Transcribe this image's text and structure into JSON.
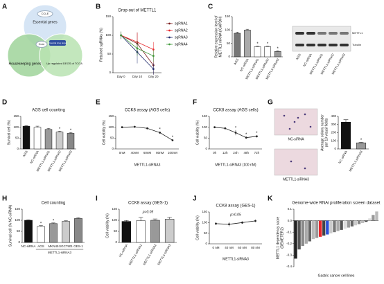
{
  "chart_data": [
    {
      "panel": "A",
      "type": "venn",
      "sets": [
        "Essential genes",
        "Housekeeping genes",
        "Up regulated DEGS of TCGA"
      ],
      "colors": [
        "#cfe0f3",
        "#9fd39a",
        "#b9e3b2"
      ],
      "labels": [
        "CCLE",
        "Core",
        "Potential drug target"
      ]
    },
    {
      "panel": "B",
      "type": "line",
      "title": "Drop-out of METTL1",
      "ylabel": "Retained sgRNAs (%)",
      "categories": [
        "Day 0",
        "Day 10",
        "Day 20"
      ],
      "ylim": [
        0,
        150
      ],
      "yticks": [
        0,
        50,
        100,
        150
      ],
      "series": [
        {
          "name": "sgRNA1",
          "color": "#7b1c1c",
          "values": [
            100,
            78,
            20
          ],
          "errors": [
            10,
            30,
            25
          ]
        },
        {
          "name": "sgRNA2",
          "color": "#e8262b",
          "values": [
            100,
            82,
            62
          ],
          "errors": [
            10,
            25,
            20
          ]
        },
        {
          "name": "sgRNA3",
          "color": "#1f2a6b",
          "values": [
            100,
            55,
            10
          ],
          "errors": [
            10,
            30,
            15
          ]
        },
        {
          "name": "sgRNA4",
          "color": "#3f9a3a",
          "values": [
            100,
            65,
            45
          ],
          "errors": [
            10,
            20,
            15
          ]
        }
      ]
    },
    {
      "panel": "C",
      "type": "bar",
      "ylabel": [
        "Relative expression level of",
        "METTL1 mRNA (/GAPDH)"
      ],
      "categories": [
        "AGS",
        "NC-siRNA",
        "METTL1-siRNA1",
        "METTL1-siRNA2",
        "METTL1-siRNA3"
      ],
      "values": [
        88,
        100,
        38,
        38,
        20
      ],
      "errors": [
        4,
        3,
        2,
        2,
        2
      ],
      "colors": [
        "#777777",
        "#aaaaaa",
        "#ffffff",
        "#ffffff",
        "#999999"
      ],
      "significance": [
        null,
        null,
        "*",
        "*",
        "*"
      ],
      "ylim": [
        0,
        150
      ],
      "yticks": [
        0,
        50,
        100,
        150
      ],
      "blot": {
        "bands": [
          "METTL1",
          "Tubulin"
        ],
        "lanes": [
          "AGS",
          "NC-siRNA",
          "METTL1-siRNA1",
          "METTL1-siRNA2",
          "METTL1-siRNA3"
        ]
      }
    },
    {
      "panel": "D",
      "type": "bar",
      "title": "AGS cell counting",
      "ylabel": "Survival cell (%)",
      "categories": [
        "AGS",
        "NC-siRNA",
        "METTL1-siRNA1",
        "METTL1-siRNA2",
        "METTL1-siRNA3"
      ],
      "values": [
        105,
        100,
        90,
        78,
        72
      ],
      "errors": [
        2,
        5,
        5,
        4,
        4
      ],
      "colors": [
        "#111111",
        "#ffffff",
        "#999999",
        "#cccccc",
        "#888888"
      ],
      "significance": [
        null,
        null,
        null,
        "*",
        "*"
      ],
      "ylim": [
        0,
        150
      ],
      "yticks": [
        0,
        50,
        100,
        150
      ]
    },
    {
      "panel": "E",
      "type": "line",
      "title": "CCK8 assay (AGS cells)",
      "ylabel": "Cell viability (%)",
      "xlabel": "METTL1-siRNA3",
      "categories": [
        "0nM",
        "40nM",
        "60nM",
        "80nM",
        "100nM"
      ],
      "values": [
        100,
        102,
        95,
        75,
        40
      ],
      "errors": [
        3,
        3,
        4,
        5,
        4
      ],
      "color": "#222222",
      "significance": [
        null,
        null,
        null,
        "*",
        "*"
      ],
      "ylim": [
        0,
        150
      ],
      "yticks": [
        0,
        50,
        100,
        150
      ]
    },
    {
      "panel": "F",
      "type": "line",
      "title": "CCK8 assay (AGS cells)",
      "ylabel": "Cell viability (%)",
      "xlabel": "METTL1-siRNA3 (100 nM)",
      "categories": [
        "0h",
        "12h",
        "24h",
        "48h",
        "72h"
      ],
      "values": [
        100,
        95,
        75,
        52,
        58
      ],
      "errors": [
        3,
        4,
        12,
        4,
        4
      ],
      "color": "#222222",
      "significance": [
        null,
        null,
        "*",
        "*",
        "*"
      ],
      "ylim": [
        0,
        150
      ],
      "yticks": [
        0,
        50,
        100,
        150
      ]
    },
    {
      "panel": "G",
      "type": "bar",
      "ylabel": [
        "Average colony number",
        "per 10 visual fields"
      ],
      "categories": [
        "NC-siRNA",
        "METTL1-siRNA3"
      ],
      "values": [
        330,
        75
      ],
      "errors": [
        30,
        8
      ],
      "colors": [
        "#111111",
        "#999999"
      ],
      "significance": [
        null,
        "*"
      ],
      "ylim": [
        0,
        400
      ],
      "yticks": [
        0,
        100,
        200,
        300,
        400
      ],
      "images": [
        "NC-siRNA",
        "METTL1-siRNA3"
      ]
    },
    {
      "panel": "H",
      "type": "bar",
      "title": "Cell counting",
      "ylabel": "Survival cell (% NC-siRNA)",
      "categories": [
        "NC-siRNA",
        "AGS",
        "MKN45",
        "SGC7901",
        "GES-1"
      ],
      "group_label": "METTL1-siRNA3",
      "values": [
        100,
        72,
        85,
        95,
        108
      ],
      "errors": [
        2,
        4,
        3,
        3,
        4
      ],
      "colors": [
        "#111111",
        "#ffffff",
        "#999999",
        "#cccccc",
        "#888888"
      ],
      "significance": [
        null,
        "*",
        "*",
        null,
        null
      ],
      "ylim": [
        0,
        150
      ],
      "yticks": [
        0,
        50,
        100,
        150
      ]
    },
    {
      "panel": "I",
      "type": "bar",
      "title": "CCK8 assay (GES-1)",
      "ylabel": "Cell viability (%)",
      "annotation": "p>0.05",
      "categories": [
        "NC-siRNA",
        "METTL1-siRNA1",
        "METTL1-siRNA2",
        "METTL1-siRNA3"
      ],
      "values": [
        95,
        98,
        100,
        105
      ],
      "errors": [
        4,
        15,
        6,
        8
      ],
      "colors": [
        "#111111",
        "#ffffff",
        "#999999",
        "#cccccc"
      ],
      "ylim": [
        0,
        150
      ],
      "yticks": [
        0,
        50,
        100,
        150
      ]
    },
    {
      "panel": "J",
      "type": "line",
      "title": "CCK8 assay (GES-1)",
      "ylabel": "Cell viability (%)",
      "xlabel": "METTL1-siRNA3",
      "annotation": "p>0.05",
      "categories": [
        "0 nM",
        "40 nM",
        "60 nM",
        "80 nM"
      ],
      "values": [
        95,
        92,
        100,
        108
      ],
      "errors": [
        6,
        10,
        6,
        6
      ],
      "color": "#222222",
      "ylim": [
        0,
        150
      ],
      "yticks": [
        0,
        50,
        100,
        150
      ]
    },
    {
      "panel": "K",
      "type": "bar",
      "title": "Genome-wide RNAi proliferation screen dataset",
      "ylabel": [
        "METTL1 dependency score",
        "(DEMETER2)"
      ],
      "xlabel": "Gastric cancer cell lines",
      "categories": [
        null,
        null,
        null,
        null,
        null,
        null,
        null,
        null,
        null,
        null,
        null,
        null,
        null,
        null,
        null,
        null,
        null,
        null,
        null,
        null,
        null,
        null,
        null,
        null
      ],
      "values": [
        -0.33,
        -0.25,
        -0.22,
        -0.2,
        -0.18,
        -0.16,
        -0.15,
        -0.14,
        -0.13,
        -0.12,
        -0.11,
        -0.1,
        -0.09,
        -0.08,
        -0.07,
        -0.06,
        -0.05,
        -0.04,
        -0.03,
        -0.02,
        -0.01,
        0.02,
        0.05,
        0.08
      ],
      "colors": [
        "#222222",
        "#555555",
        "#888888",
        "#aaaaaa",
        "#666666",
        "#bbbbbb",
        "#999999",
        "#e8262b",
        "#444444",
        "#2b4fd8",
        "#cccccc",
        "#777777",
        "#aaaaaa",
        "#555555",
        "#dddddd",
        "#999999",
        "#666666",
        "#cccccc",
        "#888888",
        "#bbbbbb",
        "#444444",
        "#dddddd",
        "#999999",
        "#bbbbbb"
      ],
      "ylim": [
        -0.4,
        0.1
      ],
      "yticks": [
        -0.4,
        -0.3,
        -0.2,
        -0.1,
        {
          "value": 0,
          "label": "0.0"
        },
        0.1
      ]
    }
  ]
}
